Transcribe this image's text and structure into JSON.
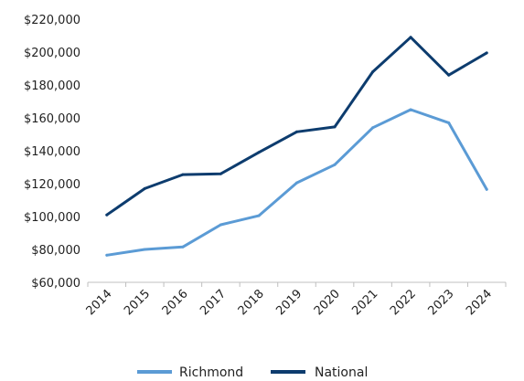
{
  "chart_data": {
    "type": "line",
    "x": [
      "2014",
      "2015",
      "2016",
      "2017",
      "2018",
      "2019",
      "2020",
      "2021",
      "2022",
      "2023",
      "2024"
    ],
    "series": [
      {
        "name": "Richmond",
        "color": "#5b9bd5",
        "values": [
          76500,
          80000,
          81500,
          95000,
          100500,
          120500,
          131500,
          154000,
          165000,
          157000,
          116500
        ]
      },
      {
        "name": "National",
        "color": "#0d3c6e",
        "values": [
          101000,
          117000,
          125500,
          126000,
          139000,
          151500,
          154500,
          188000,
          209000,
          186000,
          199500
        ]
      }
    ],
    "y_ticks": [
      "$60,000",
      "$80,000",
      "$100,000",
      "$120,000",
      "$140,000",
      "$160,000",
      "$180,000",
      "$200,000",
      "$220,000"
    ],
    "y_tick_values": [
      60000,
      80000,
      100000,
      120000,
      140000,
      160000,
      180000,
      200000,
      220000
    ],
    "ylim": [
      60000,
      220000
    ],
    "grid": false,
    "legend_position": "bottom-center",
    "title": "",
    "xlabel": "",
    "ylabel": ""
  }
}
